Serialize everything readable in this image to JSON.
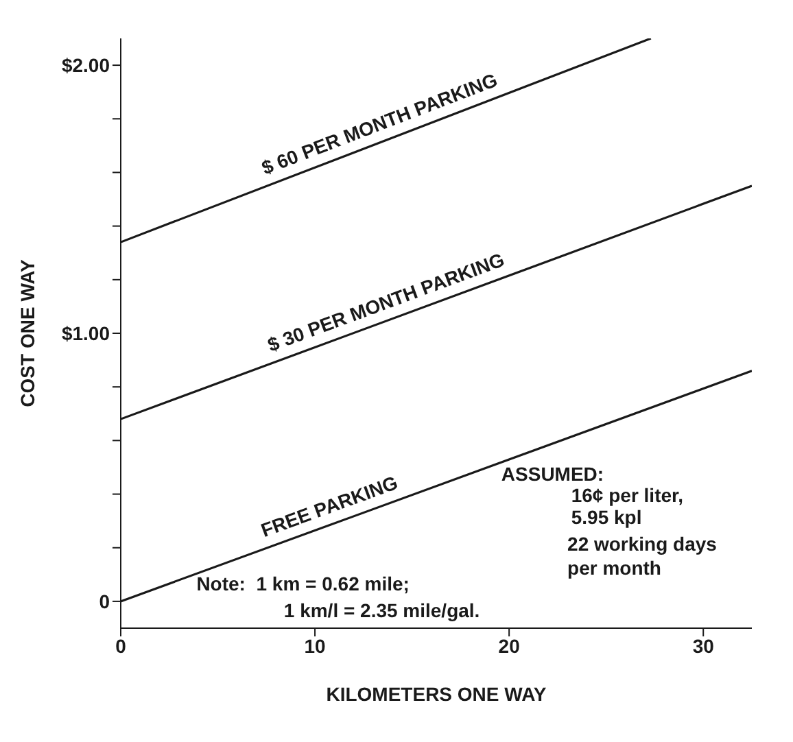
{
  "chart_data": {
    "type": "line",
    "xlabel": "KILOMETERS ONE WAY",
    "ylabel": "COST ONE WAY",
    "xlim": [
      0,
      32.5
    ],
    "xticks": [
      0,
      10,
      20,
      30
    ],
    "ylim": [
      -0.1,
      2.1
    ],
    "yticks": [
      0,
      {
        "value": 0.2,
        "label": null
      },
      {
        "value": 0.4,
        "label": null
      },
      {
        "value": 0.6,
        "label": null
      },
      {
        "value": 0.8,
        "label": null
      },
      {
        "value": 1,
        "label": "$1.00"
      },
      {
        "value": 1.2,
        "label": null
      },
      {
        "value": 1.4,
        "label": null
      },
      {
        "value": 1.6,
        "label": null
      },
      {
        "value": 1.8,
        "label": null
      },
      {
        "value": 2,
        "label": "$2.00"
      }
    ],
    "grid": false,
    "legend": false,
    "marker": "none",
    "line_style": "solid",
    "series": [
      {
        "name": "$ 60 PER MONTH PARKING",
        "color": "#1a1a1a",
        "x": [
          0,
          27.3
        ],
        "values": [
          1.34,
          2.1
        ]
      },
      {
        "name": "$ 30 PER MONTH PARKING",
        "color": "#1a1a1a",
        "x": [
          0,
          32.5
        ],
        "values": [
          0.68,
          1.55
        ]
      },
      {
        "name": "FREE PARKING",
        "color": "#1a1a1a",
        "x": [
          0,
          32.5
        ],
        "values": [
          0,
          0.86
        ]
      }
    ],
    "annotations": [
      "ASSUMED:",
      "16¢ per liter,",
      "5.95 kpl",
      "22 working days",
      "per month",
      "Note:  1 km = 0.62 mile;",
      "1 km/l = 2.35 mile/gal."
    ]
  }
}
